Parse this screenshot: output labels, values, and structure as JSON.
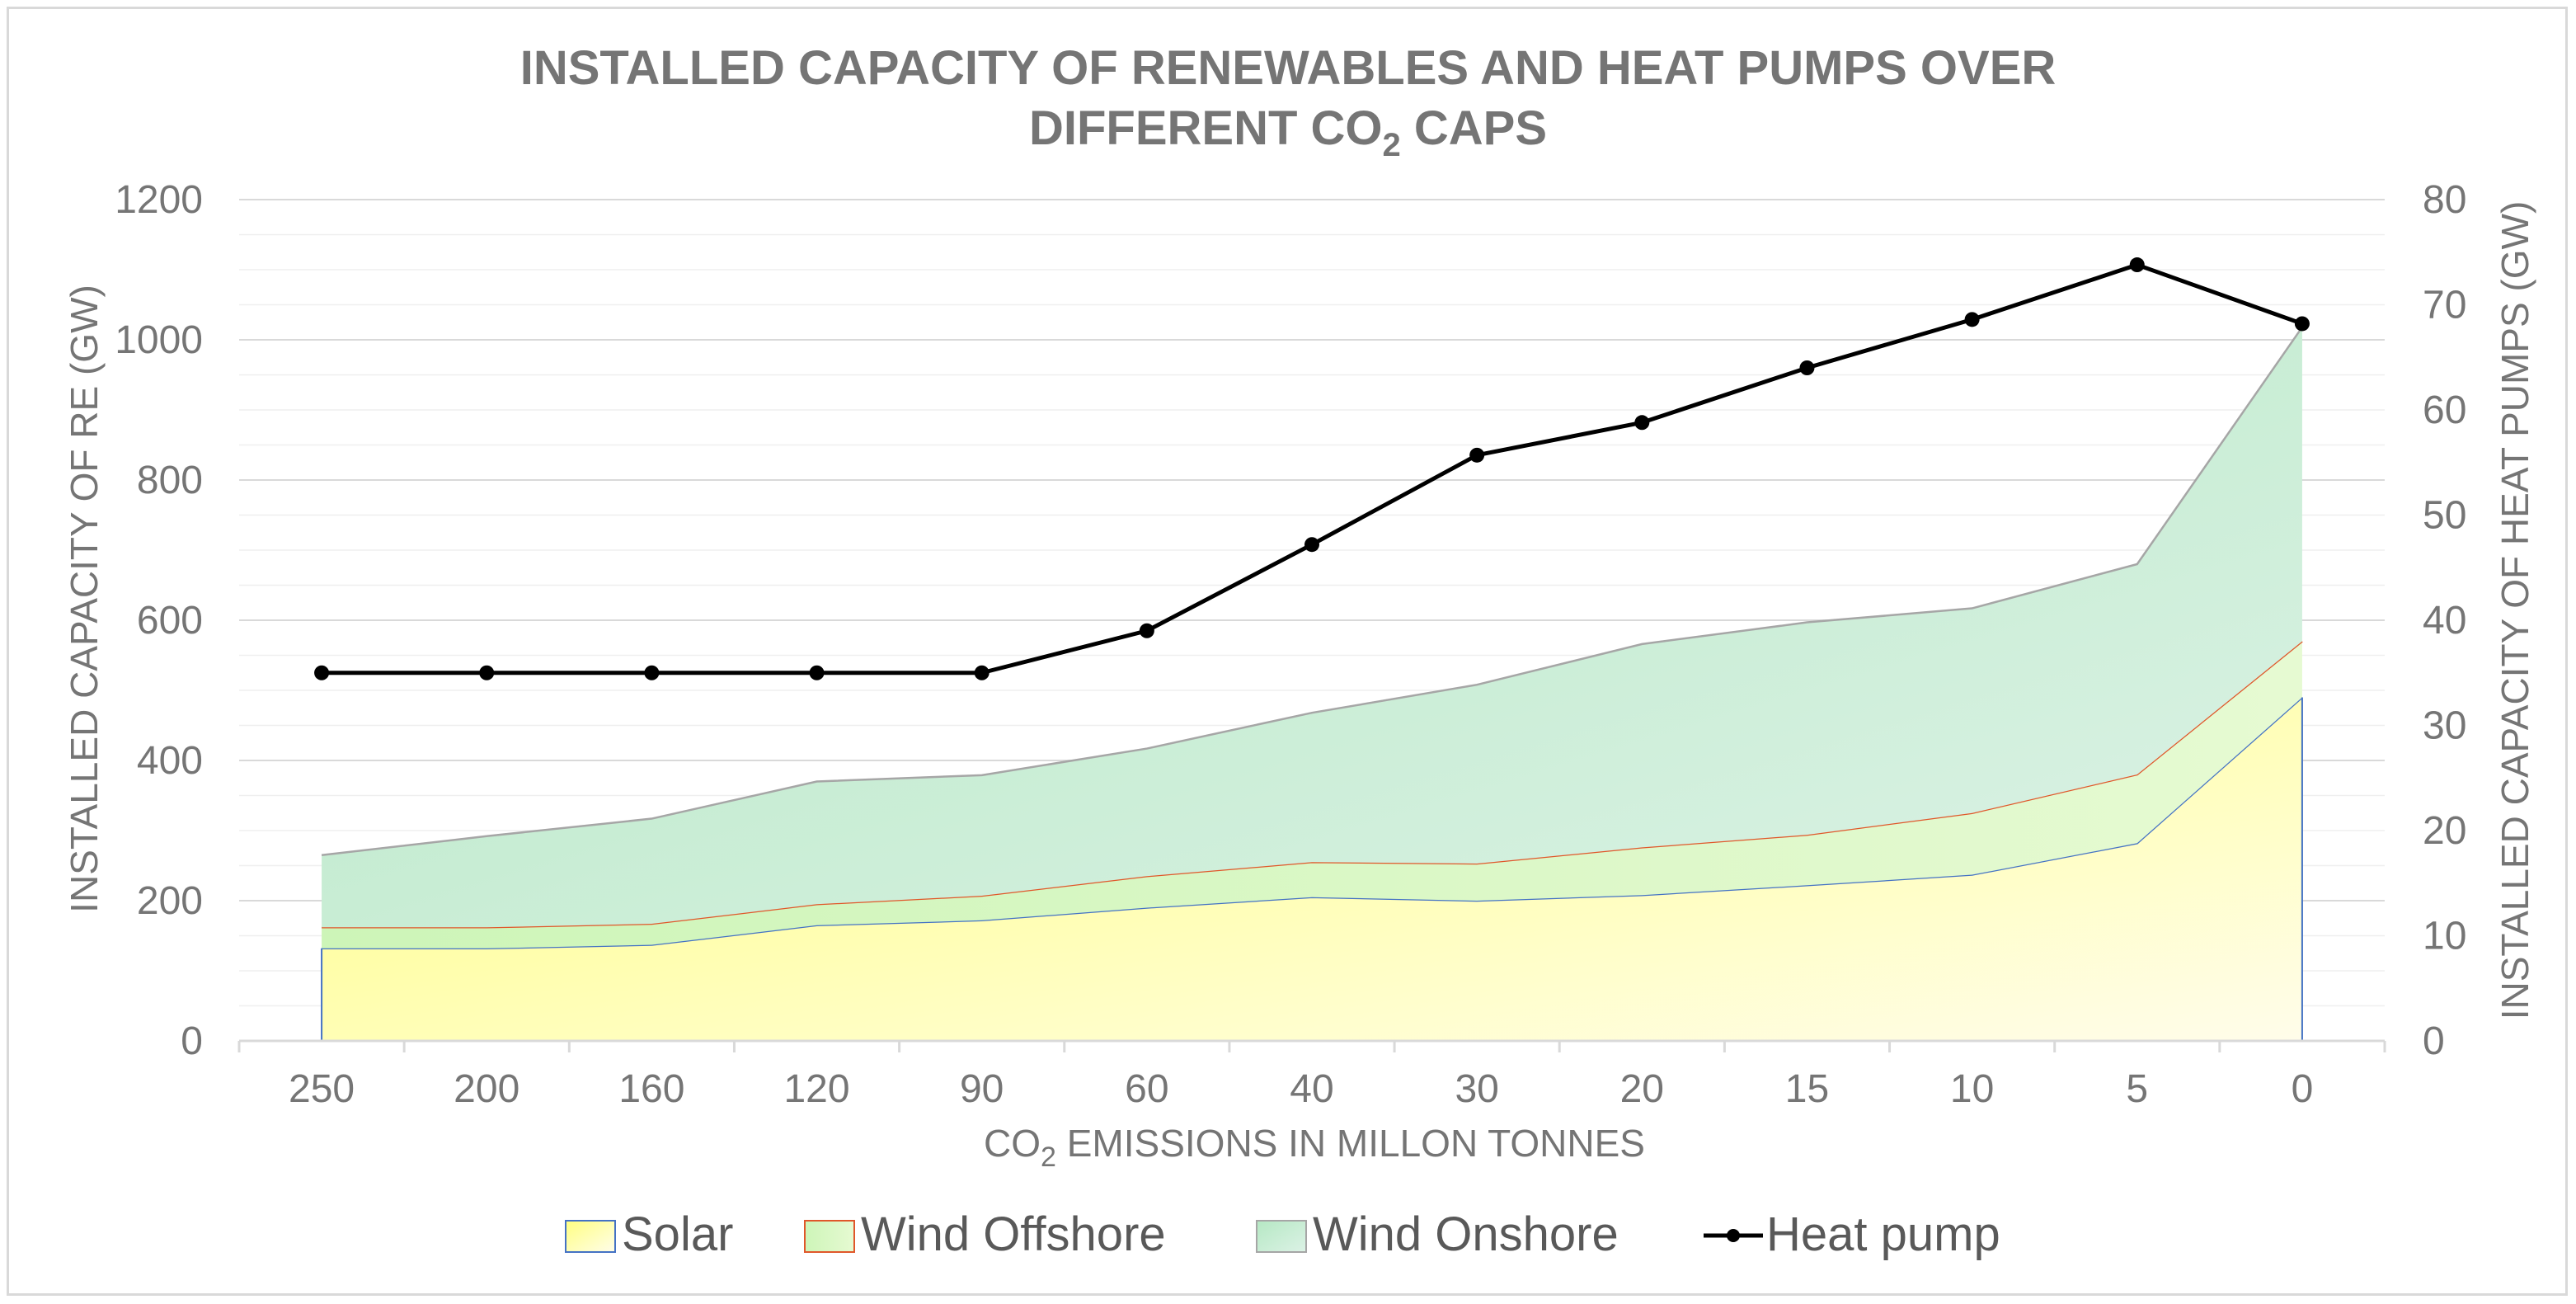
{
  "chart_data": {
    "type": "area",
    "title_line1": "INSTALLED CAPACITY OF RENEWABLES AND HEAT PUMPS OVER",
    "title_line2_pre": "DIFFERENT CO",
    "title_line2_sub": "2",
    "title_line2_post": " CAPS",
    "xlabel_pre": "CO",
    "xlabel_sub": "2",
    "xlabel_post": " EMISSIONS IN MILLON TONNES",
    "ylabel": "INSTALLED CAPACITY OF RE (GW)",
    "y2label": "INSTALLED CAPACITY OF HEAT PUMPS (GW)",
    "categories": [
      "250",
      "200",
      "160",
      "120",
      "90",
      "60",
      "40",
      "30",
      "20",
      "15",
      "10",
      "5",
      "0"
    ],
    "ylim": [
      0,
      1200
    ],
    "yticks": [
      "0",
      "200",
      "400",
      "600",
      "800",
      "1000",
      "1200"
    ],
    "y2lim": [
      0,
      80
    ],
    "y2ticks": [
      "0",
      "10",
      "20",
      "30",
      "40",
      "50",
      "60",
      "70",
      "80"
    ],
    "series": [
      {
        "name": "Solar",
        "kind": "stacked-area",
        "axis": "left",
        "values": [
          132,
          132,
          137,
          165,
          172,
          190,
          205,
          200,
          208,
          222,
          237,
          282,
          490
        ]
      },
      {
        "name": "Wind Offshore",
        "kind": "stacked-area",
        "axis": "left",
        "values": [
          30,
          30,
          30,
          30,
          35,
          45,
          50,
          53,
          68,
          72,
          88,
          98,
          80
        ]
      },
      {
        "name": "Wind Onshore",
        "kind": "stacked-area",
        "axis": "left",
        "values": [
          103,
          130,
          150,
          175,
          172,
          182,
          213,
          255,
          290,
          303,
          292,
          300,
          448
        ]
      },
      {
        "name": "Heat pump",
        "kind": "line",
        "axis": "right",
        "values": [
          35,
          35,
          35,
          35,
          35,
          39,
          47.2,
          55.7,
          58.8,
          64,
          68.6,
          73.8,
          68.2
        ]
      }
    ],
    "legend_position": "bottom",
    "colors": {
      "solar_edge": "#4472c4",
      "offshore_edge": "#e0572a",
      "onshore_edge": "#a6a6a6",
      "heat_line": "#000000"
    }
  }
}
